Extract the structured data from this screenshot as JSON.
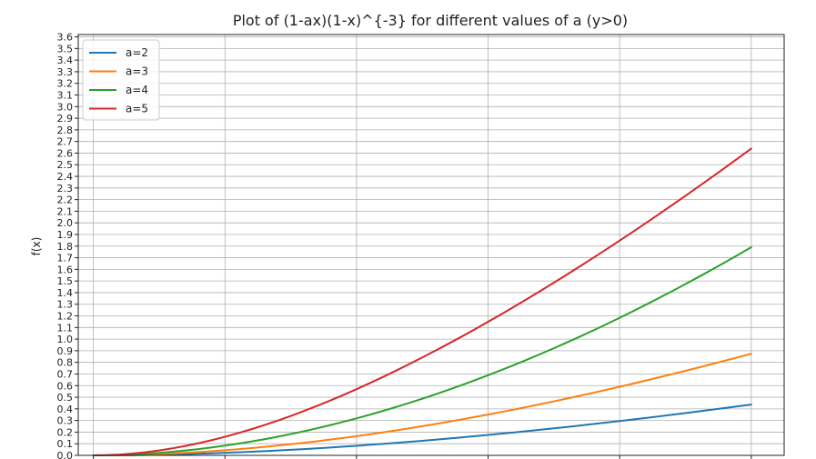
{
  "chart_data": {
    "type": "line",
    "title": "Plot of (1-ax)(1-x)^{-3} for different values of a (y>0)",
    "xlabel": "",
    "ylabel": "f(x)",
    "x": [
      0,
      0.02,
      0.04,
      0.06,
      0.08,
      0.1,
      0.12,
      0.14,
      0.16,
      0.18,
      0.2,
      0.22,
      0.24,
      0.26,
      0.28,
      0.3,
      0.32,
      0.34,
      0.36,
      0.38,
      0.4,
      0.42,
      0.44,
      0.46,
      0.48,
      0.5,
      0.52,
      0.54,
      0.56,
      0.58,
      0.6,
      0.62,
      0.64,
      0.66,
      0.68,
      0.7,
      0.72,
      0.74,
      0.76,
      0.78,
      0.8,
      0.82,
      0.84,
      0.86,
      0.88,
      0.9,
      0.92,
      0.94,
      0.96,
      0.98,
      1.0
    ],
    "xlim": [
      -0.023,
      1.05
    ],
    "ylim": [
      0,
      3.62
    ],
    "yticks": [
      "0.0",
      "0.1",
      "0.2",
      "0.3",
      "0.4",
      "0.5",
      "0.6",
      "0.7",
      "0.8",
      "0.9",
      "1.0",
      "1.1",
      "1.2",
      "1.3",
      "1.4",
      "1.5",
      "1.6",
      "1.7",
      "1.8",
      "1.9",
      "2.0",
      "2.1",
      "2.2",
      "2.3",
      "2.4",
      "2.5",
      "2.6",
      "2.7",
      "2.8",
      "2.9",
      "3.0",
      "3.1",
      "3.2",
      "3.3",
      "3.4",
      "3.5",
      "3.6"
    ],
    "xgrid": [
      0,
      0.2,
      0.4,
      0.6,
      0.8,
      1.0
    ],
    "grid": true,
    "legend_position": "upper-left",
    "series": [
      {
        "name": "a=2",
        "color": "#1f77b4",
        "values": [
          0,
          0.0002,
          0.0009,
          0.0021,
          0.0037,
          0.0058,
          0.0082,
          0.0111,
          0.0144,
          0.018,
          0.0221,
          0.0265,
          0.0313,
          0.0365,
          0.042,
          0.0479,
          0.0542,
          0.0608,
          0.0677,
          0.075,
          0.0826,
          0.0906,
          0.0988,
          0.1074,
          0.1163,
          0.1254,
          0.1349,
          0.1446,
          0.1547,
          0.165,
          0.1756,
          0.1864,
          0.1975,
          0.2089,
          0.2205,
          0.2324,
          0.2445,
          0.2568,
          0.2694,
          0.2822,
          0.2953,
          0.3085,
          0.322,
          0.3357,
          0.3496,
          0.3637,
          0.378,
          0.3925,
          0.4072,
          0.4221,
          0.4372
        ]
      },
      {
        "name": "a=3",
        "color": "#ff7f0e",
        "values": [
          0,
          0.0005,
          0.0019,
          0.0042,
          0.0074,
          0.0115,
          0.0164,
          0.0222,
          0.0287,
          0.0361,
          0.0442,
          0.053,
          0.0626,
          0.073,
          0.084,
          0.0958,
          0.1083,
          0.1215,
          0.1354,
          0.15,
          0.1652,
          0.1811,
          0.1976,
          0.2147,
          0.2325,
          0.2509,
          0.2698,
          0.2893,
          0.3093,
          0.33,
          0.3511,
          0.3728,
          0.3951,
          0.4178,
          0.441,
          0.4647,
          0.4889,
          0.5136,
          0.5388,
          0.5644,
          0.5905,
          0.617,
          0.644,
          0.6714,
          0.6992,
          0.7274,
          0.756,
          0.785,
          0.8144,
          0.8442,
          0.8744
        ]
      },
      {
        "name": "a=4",
        "color": "#2ca02c",
        "values": [
          0,
          0.0009,
          0.0035,
          0.0078,
          0.0139,
          0.0216,
          0.0309,
          0.0417,
          0.0542,
          0.0681,
          0.0836,
          0.1006,
          0.119,
          0.139,
          0.1604,
          0.1832,
          0.2074,
          0.2331,
          0.2601,
          0.2886,
          0.3184,
          0.3496,
          0.3821,
          0.4159,
          0.4511,
          0.4876,
          0.5253,
          0.5644,
          0.6047,
          0.6463,
          0.6891,
          0.7332,
          0.7785,
          0.825,
          0.8727,
          0.9216,
          0.9717,
          1.0229,
          1.0753,
          1.1289,
          1.1836,
          1.2394,
          1.2963,
          1.3543,
          1.4134,
          1.4736,
          1.5349,
          1.5973,
          1.6607,
          1.7252,
          1.7907
        ]
      },
      {
        "name": "a=5",
        "color": "#d62728",
        "values": [
          0,
          0.0018,
          0.007,
          0.0156,
          0.0274,
          0.0423,
          0.0602,
          0.081,
          0.1046,
          0.1308,
          0.1596,
          0.1909,
          0.2246,
          0.2605,
          0.2987,
          0.339,
          0.3813,
          0.4256,
          0.4718,
          0.5198,
          0.5695,
          0.621,
          0.674,
          0.7285,
          0.7846,
          0.8421,
          0.9009,
          0.9611,
          1.0226,
          1.0853,
          1.1492,
          1.2142,
          1.2804,
          1.3477,
          1.4161,
          1.4855,
          1.5559,
          1.6274,
          1.6998,
          1.7732,
          1.8476,
          1.9228,
          1.999,
          2.0761,
          2.154,
          2.2328,
          2.3124,
          2.3929,
          2.4741,
          2.5562,
          2.639
        ]
      }
    ]
  }
}
